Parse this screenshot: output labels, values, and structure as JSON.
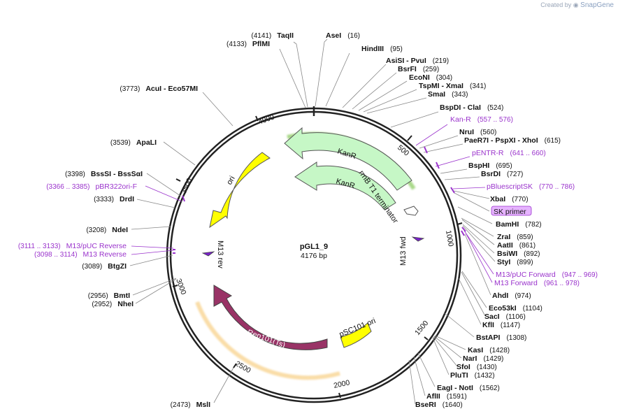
{
  "credit": {
    "prefix": "Created by",
    "brand": "SnapGene"
  },
  "plasmid": {
    "name": "pGL1_9",
    "size": "4176 bp"
  },
  "ticks": [
    "500",
    "1000",
    "1500",
    "2000",
    "2500",
    "3000",
    "3500",
    "4000"
  ],
  "features": {
    "kanr_outer": "KanR",
    "kanr_inner": "KanR",
    "terminator": "rrnB T1 terminator",
    "ori": "ori",
    "m13rev": "M13 rev",
    "m13fwd": "M13 fwd",
    "psc101": "pSC101 ori",
    "rep101": "Rep101(Ts)"
  },
  "sites_right": [
    {
      "name": "AseI",
      "pos": "(16)"
    },
    {
      "name": "HindIII",
      "pos": "(95)"
    },
    {
      "name": "AsiSI  - PvuI",
      "pos": "(219)"
    },
    {
      "name": "BsrFI",
      "pos": "(259)"
    },
    {
      "name": "EcoNI",
      "pos": "(304)"
    },
    {
      "name": "TspMI  - XmaI",
      "pos": "(341)"
    },
    {
      "name": "SmaI",
      "pos": "(343)"
    },
    {
      "name": "BspDI  - ClaI",
      "pos": "(524)"
    },
    {
      "name": "Kan-R",
      "pos": "(557 .. 576)"
    },
    {
      "name": "NruI",
      "pos": "(560)"
    },
    {
      "name": "PaeR7I  - PspXI  - XhoI",
      "pos": "(615)"
    },
    {
      "name": "pENTR-R",
      "pos": "(641 .. 660)"
    },
    {
      "name": "BspHI",
      "pos": "(695)"
    },
    {
      "name": "BsrDI",
      "pos": "(727)"
    },
    {
      "name": "pBluescriptSK",
      "pos": "(770 .. 786)"
    },
    {
      "name": "XbaI",
      "pos": "(770)"
    },
    {
      "name": "SK primer",
      "pos": ""
    },
    {
      "name": "BamHI",
      "pos": "(782)"
    },
    {
      "name": "ZraI",
      "pos": "(859)"
    },
    {
      "name": "AatII",
      "pos": "(861)"
    },
    {
      "name": "BsiWI",
      "pos": "(892)"
    },
    {
      "name": "StyI",
      "pos": "(899)"
    },
    {
      "name": "M13/pUC Forward",
      "pos": "(947 .. 969)"
    },
    {
      "name": "M13 Forward",
      "pos": "(961 .. 978)"
    },
    {
      "name": "AhdI",
      "pos": "(974)"
    },
    {
      "name": "Eco53kI",
      "pos": "(1104)"
    },
    {
      "name": "SacI",
      "pos": "(1106)"
    },
    {
      "name": "KflI",
      "pos": "(1147)"
    },
    {
      "name": "BstAPI",
      "pos": "(1308)"
    },
    {
      "name": "KasI",
      "pos": "(1428)"
    },
    {
      "name": "NarI",
      "pos": "(1429)"
    },
    {
      "name": "SfoI",
      "pos": "(1430)"
    },
    {
      "name": "PluTI",
      "pos": "(1432)"
    },
    {
      "name": "EagI  - NotI",
      "pos": "(1562)"
    },
    {
      "name": "AflII",
      "pos": "(1591)"
    },
    {
      "name": "BseRI",
      "pos": "(1640)"
    }
  ],
  "sites_left": [
    {
      "name": "TaqII",
      "pos": "(4141)"
    },
    {
      "name": "PflMI",
      "pos": "(4133)"
    },
    {
      "name": "AcuI  - Eco57MI",
      "pos": "(3773)"
    },
    {
      "name": "ApaLI",
      "pos": "(3539)"
    },
    {
      "name": "BssSI  - BssSαI",
      "pos": "(3398)"
    },
    {
      "name": "pBR322ori-F",
      "pos": "(3366 .. 3385)"
    },
    {
      "name": "DrdI",
      "pos": "(3333)"
    },
    {
      "name": "NdeI",
      "pos": "(3208)"
    },
    {
      "name": "M13/pUC Reverse",
      "pos": "(3111 .. 3133)"
    },
    {
      "name": "M13 Reverse",
      "pos": "(3098 .. 3114)"
    },
    {
      "name": "BtgZI",
      "pos": "(3089)"
    },
    {
      "name": "BmtI",
      "pos": "(2956)"
    },
    {
      "name": "NheI",
      "pos": "(2952)"
    },
    {
      "name": "MslI",
      "pos": "(2473)"
    }
  ]
}
